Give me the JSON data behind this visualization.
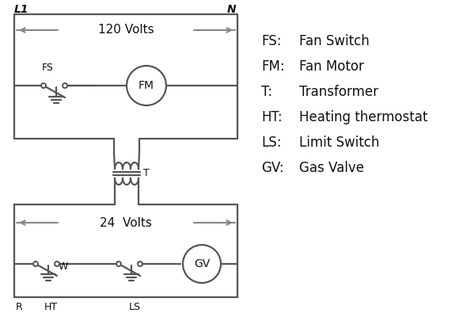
{
  "bg_color": "#ffffff",
  "line_color": "#555555",
  "arrow_color": "#888888",
  "text_color": "#111111",
  "legend_items": [
    [
      "FS:",
      "Fan Switch"
    ],
    [
      "FM:",
      "Fan Motor"
    ],
    [
      "T:",
      "Transformer"
    ],
    [
      "HT:",
      "Heating thermostat"
    ],
    [
      "LS:",
      "Limit Switch"
    ],
    [
      "GV:",
      "Gas Valve"
    ]
  ],
  "L1_label": "L1",
  "N_label": "N",
  "volts120_label": "120 Volts",
  "volts24_label": "24  Volts",
  "T_label": "T",
  "R_label": "R",
  "W_label": "W",
  "HT_label": "HT",
  "LS_label": "LS",
  "FS_label": "FS",
  "FM_label": "FM",
  "GV_label": "GV"
}
